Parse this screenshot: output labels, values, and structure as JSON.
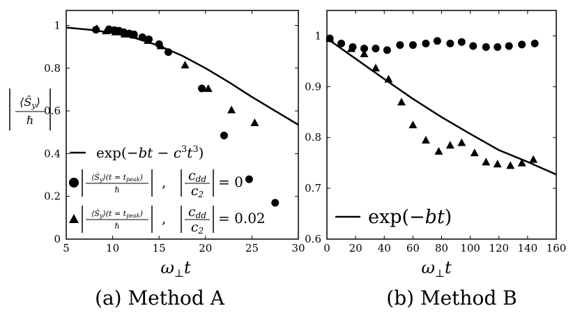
{
  "chart_data": [
    {
      "type": "scatter",
      "panel": "a",
      "caption": "(a)  Method A",
      "xlabel": "ω⊥t",
      "ylabel": "|⟨Ŝ_y⟩ / ℏ|",
      "xlim": [
        5,
        30
      ],
      "ylim": [
        0,
        1.07
      ],
      "xticks": [
        5,
        10,
        15,
        20,
        25,
        30
      ],
      "yticks": [
        0,
        0.2,
        0.4,
        0.6,
        0.8,
        1
      ],
      "xtick_labels": [
        "5",
        "10",
        "15",
        "20",
        "25",
        "30"
      ],
      "ytick_labels": [
        "0",
        "0.2",
        "0.4",
        "0.6",
        "0.8",
        "1"
      ],
      "legend": {
        "position": "lower-left",
        "line_label": "exp(−bt − c³t³)",
        "circle_label": "|⟨Ŝ_y⟩(t = t_peak)/ℏ| , |c_dd/c_2| = 0",
        "triangle_label": "|⟨Ŝ_y⟩(t = t_peak)/ℏ| , |c_dd/c_2| = 0.02",
        "frac_num": "⟨Ŝ_y⟩(t = t_peak)",
        "frac_den": "ℏ",
        "cdd": "c_dd",
        "c2": "c_2",
        "circle_value": "= 0",
        "triangle_value": "= 0.02"
      },
      "series": [
        {
          "name": "|cdd/c2| = 0",
          "marker": "circle",
          "x": [
            8.2,
            9.6,
            10.2,
            10.7,
            11.2,
            11.8,
            12.3,
            13.2,
            13.9,
            15.0,
            16.0,
            19.6,
            22.0,
            24.7,
            27.5
          ],
          "y": [
            0.98,
            0.982,
            0.978,
            0.975,
            0.968,
            0.962,
            0.958,
            0.945,
            0.935,
            0.912,
            0.875,
            0.705,
            0.485,
            0.28,
            0.17
          ]
        },
        {
          "name": "|cdd/c2| = 0.02",
          "marker": "triangle",
          "x": [
            8.3,
            9.3,
            10.3,
            11.3,
            12.3,
            13.8,
            15.2,
            17.8,
            20.3,
            22.8,
            25.3
          ],
          "y": [
            0.985,
            0.975,
            0.97,
            0.96,
            0.955,
            0.93,
            0.905,
            0.815,
            0.705,
            0.605,
            0.545
          ]
        },
        {
          "name": "exp(-bt - c^3 t^3)",
          "marker": "line",
          "x": [
            5,
            7.5,
            10,
            12.5,
            15,
            17.5,
            20,
            22.5,
            25,
            27.5,
            30
          ],
          "y": [
            0.99,
            0.98,
            0.965,
            0.94,
            0.905,
            0.858,
            0.8,
            0.735,
            0.665,
            0.6,
            0.535
          ]
        }
      ]
    },
    {
      "type": "scatter",
      "panel": "b",
      "caption": "(b)  Method B",
      "xlabel": "ω⊥t",
      "ylabel": "",
      "xlim": [
        0,
        160
      ],
      "ylim": [
        0.6,
        1.05
      ],
      "xticks": [
        0,
        20,
        40,
        60,
        80,
        100,
        120,
        140,
        160
      ],
      "yticks": [
        0.6,
        0.7,
        0.8,
        0.9,
        1
      ],
      "xtick_labels": [
        "0",
        "20",
        "40",
        "60",
        "80",
        "100",
        "120",
        "140",
        "160"
      ],
      "ytick_labels": [
        "0.6",
        "0.7",
        "0.8",
        "0.9",
        "1"
      ],
      "legend": {
        "position": "lower-left",
        "line_label": "exp(−bt)"
      },
      "series": [
        {
          "name": "|cdd/c2| = 0",
          "marker": "circle",
          "x": [
            2,
            10,
            18,
            26,
            34,
            42,
            51,
            60,
            69,
            77,
            86,
            94,
            102,
            111,
            119,
            127,
            136,
            145
          ],
          "y": [
            0.995,
            0.985,
            0.978,
            0.975,
            0.975,
            0.972,
            0.982,
            0.982,
            0.985,
            0.99,
            0.985,
            0.988,
            0.98,
            0.978,
            0.978,
            0.98,
            0.983,
            0.985
          ]
        },
        {
          "name": "|cdd/c2| = 0.02",
          "marker": "triangle",
          "x": [
            2,
            17,
            26,
            34,
            43,
            52,
            60,
            69,
            78,
            86,
            94,
            103,
            111,
            119,
            128,
            136,
            144
          ],
          "y": [
            0.995,
            0.975,
            0.965,
            0.937,
            0.915,
            0.87,
            0.825,
            0.795,
            0.773,
            0.785,
            0.79,
            0.77,
            0.752,
            0.748,
            0.745,
            0.75,
            0.757
          ]
        },
        {
          "name": "exp(-bt)",
          "marker": "line",
          "x": [
            0,
            20,
            40,
            60,
            80,
            100,
            120,
            140,
            160
          ],
          "y": [
            0.995,
            0.955,
            0.915,
            0.876,
            0.84,
            0.807,
            0.775,
            0.752,
            0.727
          ]
        }
      ]
    }
  ]
}
